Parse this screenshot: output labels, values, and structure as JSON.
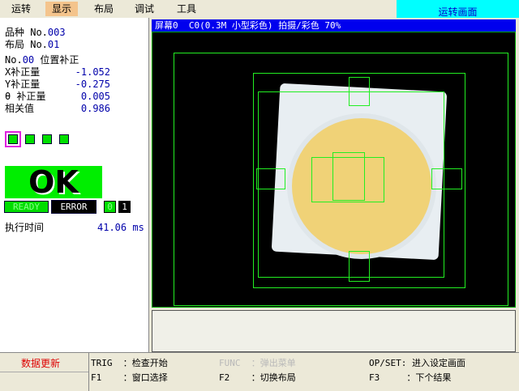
{
  "menu": {
    "items": [
      "运转",
      "显示",
      "布局",
      "调试",
      "工具"
    ],
    "active": "显示",
    "screen_title": "运转画面"
  },
  "info": {
    "product_label": "品种 No.",
    "product_no": "003",
    "layout_label": "布局 No.",
    "layout_no": "01",
    "comp_no_label": "No.",
    "comp_no": "00",
    "comp_title": "位置补正",
    "rows": [
      {
        "label": "X补正量",
        "value": "-1.052"
      },
      {
        "label": "Y补正量",
        "value": "-0.275"
      },
      {
        "label": "θ 补正量",
        "value": "0.005"
      },
      {
        "label": "相关值",
        "value": "0.986"
      }
    ]
  },
  "result": "OK",
  "status": {
    "ready": "READY",
    "error": "ERROR",
    "bit0": "0",
    "bit1": "1"
  },
  "exec": {
    "label": "执行时间",
    "value": "41.06",
    "unit": "ms"
  },
  "camera": {
    "title": "屏幕0  C0(0.3M 小型彩色) 拍摄/彩色 70%"
  },
  "footer": {
    "data_update": "数据更新",
    "keys": [
      {
        "key": "TRIG",
        "desc": "：检查开始"
      },
      {
        "key": "FUNC",
        "desc": "：弹出菜单",
        "disabled": true
      },
      {
        "key": "OP/SET:",
        "desc": "进入设定画面"
      },
      {
        "key": "F1",
        "desc": "：窗口选择"
      },
      {
        "key": "F2",
        "desc": "：切换布局"
      },
      {
        "key": "F3",
        "desc": "：下个结果"
      }
    ]
  },
  "colors": {
    "ok": "#00ee00",
    "title_bar": "#0000ee",
    "overlay": "#22ee22",
    "screen_title_bg": "#00ffff"
  }
}
